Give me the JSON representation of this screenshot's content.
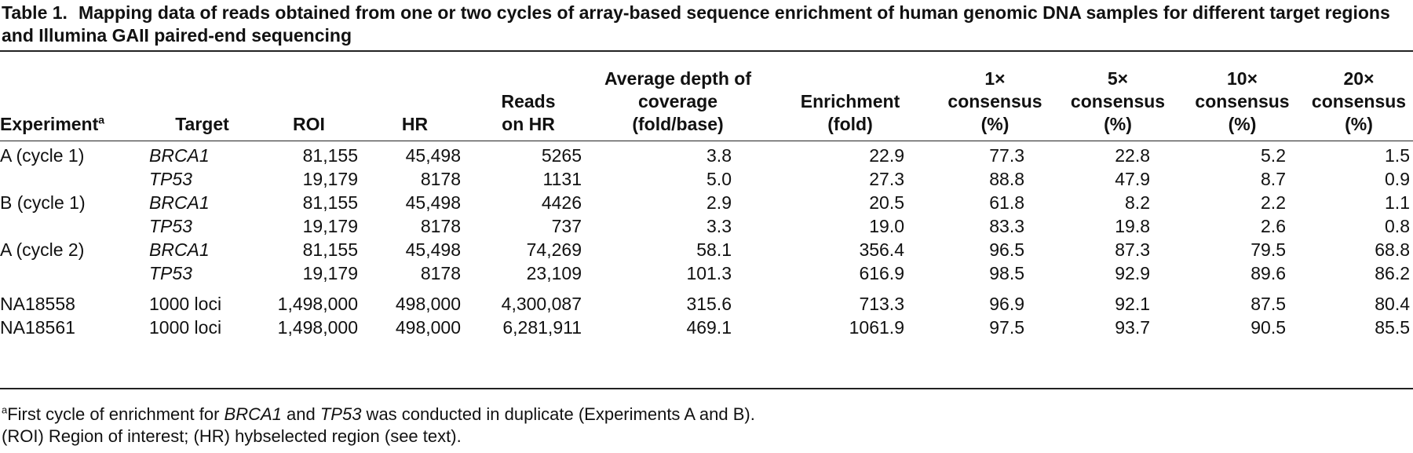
{
  "caption": {
    "label": "Table 1.",
    "text": "Mapping data of reads obtained from one or two cycles of array-based sequence enrichment of human genomic DNA samples for different target regions and Illumina GAII paired-end sequencing"
  },
  "headers": {
    "experiment": "Experiment",
    "experiment_sup": "a",
    "target": "Target",
    "roi": "ROI",
    "hr": "HR",
    "reads_1": "Reads",
    "reads_2": "on HR",
    "depth_1": "Average depth of",
    "depth_2": "coverage",
    "depth_3": "(fold/base)",
    "enrich_1": "Enrichment",
    "enrich_2": "(fold)",
    "c1_1": "1×",
    "c1_2": "consensus",
    "c1_3": "(%)",
    "c5_1": "5×",
    "c5_2": "consensus",
    "c5_3": "(%)",
    "c10_1": "10×",
    "c10_2": "consensus",
    "c10_3": "(%)",
    "c20_1": "20×",
    "c20_2": "consensus",
    "c20_3": "(%)"
  },
  "rows": [
    {
      "experiment": "A (cycle 1)",
      "target": "BRCA1",
      "roi": "81,155",
      "hr": "45,498",
      "reads": "5265",
      "depth": "3.8",
      "enrichment": "22.9",
      "c1": "77.3",
      "c5": "22.8",
      "c10": "5.2",
      "c20": "1.5"
    },
    {
      "experiment": "",
      "target": "TP53",
      "roi": "19,179",
      "hr": "8178",
      "reads": "1131",
      "depth": "5.0",
      "enrichment": "27.3",
      "c1": "88.8",
      "c5": "47.9",
      "c10": "8.7",
      "c20": "0.9"
    },
    {
      "experiment": "B (cycle 1)",
      "target": "BRCA1",
      "roi": "81,155",
      "hr": "45,498",
      "reads": "4426",
      "depth": "2.9",
      "enrichment": "20.5",
      "c1": "61.8",
      "c5": "8.2",
      "c10": "2.2",
      "c20": "1.1"
    },
    {
      "experiment": "",
      "target": "TP53",
      "roi": "19,179",
      "hr": "8178",
      "reads": "737",
      "depth": "3.3",
      "enrichment": "19.0",
      "c1": "83.3",
      "c5": "19.8",
      "c10": "2.6",
      "c20": "0.8"
    },
    {
      "experiment": "A (cycle 2)",
      "target": "BRCA1",
      "roi": "81,155",
      "hr": "45,498",
      "reads": "74,269",
      "depth": "58.1",
      "enrichment": "356.4",
      "c1": "96.5",
      "c5": "87.3",
      "c10": "79.5",
      "c20": "68.8"
    },
    {
      "experiment": "",
      "target": "TP53",
      "roi": "19,179",
      "hr": "8178",
      "reads": "23,109",
      "depth": "101.3",
      "enrichment": "616.9",
      "c1": "98.5",
      "c5": "92.9",
      "c10": "89.6",
      "c20": "86.2"
    },
    {
      "experiment": "NA18558",
      "target": "1000 loci",
      "roi": "1,498,000",
      "hr": "498,000",
      "reads": "4,300,087",
      "depth": "315.6",
      "enrichment": "713.3",
      "c1": "96.9",
      "c5": "92.1",
      "c10": "87.5",
      "c20": "80.4"
    },
    {
      "experiment": "NA18561",
      "target": "1000 loci",
      "roi": "1,498,000",
      "hr": "498,000",
      "reads": "6,281,911",
      "depth": "469.1",
      "enrichment": "1061.9",
      "c1": "97.5",
      "c5": "93.7",
      "c10": "90.5",
      "c20": "85.5"
    }
  ],
  "footnotes": {
    "fn_a_marker": "a",
    "fn_a_1": "First cycle of enrichment for ",
    "fn_a_brca1": "BRCA1",
    "fn_a_and": " and ",
    "fn_a_tp53": "TP53",
    "fn_a_2": " was conducted in duplicate (Experiments A and B).",
    "fn_abbr": "(ROI) Region of interest; (HR) hybselected region (see text)."
  }
}
